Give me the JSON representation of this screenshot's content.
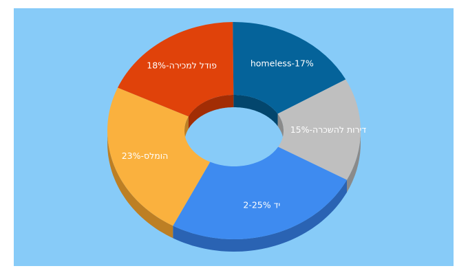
{
  "chart_data": {
    "type": "pie",
    "variant": "3d-donut",
    "slices": [
      {
        "label": "homeless-17%",
        "value": 17,
        "color": "#05639a",
        "side": "#03466d"
      },
      {
        "label": "דירות להשכרה-15%",
        "value": 15,
        "color": "#bfbfbf",
        "side": "#8a8a8a"
      },
      {
        "label": "יד 2-25%",
        "value": 25,
        "color": "#3e8bf0",
        "side": "#2a63b3"
      },
      {
        "label": "הומלס-23%",
        "value": 23,
        "color": "#fab13e",
        "side": "#bd7f24"
      },
      {
        "label": "פודל למכירה-18%",
        "value": 18,
        "color": "#e0420a",
        "side": "#a22d05"
      }
    ],
    "background": "#87cbf8"
  }
}
